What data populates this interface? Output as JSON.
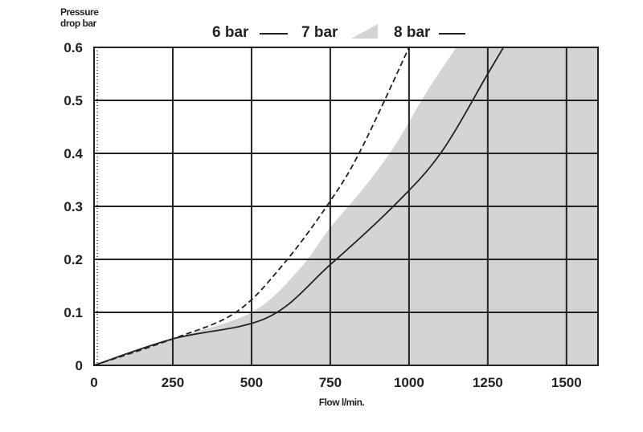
{
  "chart_data": {
    "type": "line",
    "title": "",
    "ylabel_line1": "Pressure",
    "ylabel_line2": "drop bar",
    "xlabel": "Flow l/min.",
    "xlim": [
      0,
      1600
    ],
    "ylim": [
      0,
      0.6
    ],
    "x_ticks": [
      0,
      250,
      500,
      750,
      1000,
      1250,
      1500
    ],
    "x_tick_labels": [
      "0",
      "250",
      "500",
      "750",
      "1000",
      "1250",
      "1500"
    ],
    "y_ticks": [
      0,
      0.1,
      0.2,
      0.3,
      0.4,
      0.5,
      0.6
    ],
    "y_tick_labels": [
      "0",
      "0.1",
      "0.2",
      "0.3",
      "0.4",
      "0.5",
      "0.6"
    ],
    "grid": true,
    "legend_position": "top",
    "series": [
      {
        "name": "6 bar",
        "style": "dashed",
        "color": "#222222",
        "x": [
          0,
          250,
          450,
          600,
          750,
          850,
          1000
        ],
        "y": [
          0,
          0.05,
          0.1,
          0.19,
          0.31,
          0.41,
          0.6
        ]
      },
      {
        "name": "7 bar",
        "style": "area",
        "color": "#d4d4d4",
        "x": [
          0,
          250,
          500,
          650,
          750,
          850,
          950,
          1050,
          1150
        ],
        "y": [
          0,
          0.05,
          0.1,
          0.18,
          0.26,
          0.33,
          0.41,
          0.51,
          0.6
        ]
      },
      {
        "name": "8 bar",
        "style": "solid",
        "color": "#222222",
        "x": [
          0,
          250,
          550,
          750,
          950,
          1100,
          1250,
          1300
        ],
        "y": [
          0,
          0.05,
          0.09,
          0.19,
          0.3,
          0.4,
          0.55,
          0.6
        ]
      }
    ]
  }
}
